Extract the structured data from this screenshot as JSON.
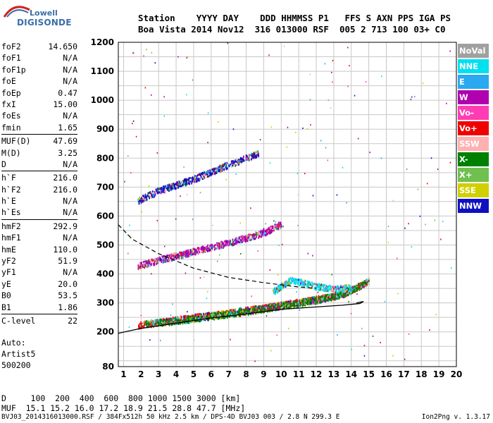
{
  "logo": {
    "line1": "Lowell",
    "line2": "DIGISONDE"
  },
  "header": {
    "line1": "Station    YYYY DAY    DDD HHMMSS P1   FFS S AXN PPS IGA PS",
    "line2": "Boa Vista 2014 Nov12  316 013000 RSF  005 2 713 100 03+ C0"
  },
  "params": [
    {
      "label": "foF2",
      "value": "14.650"
    },
    {
      "label": "foF1",
      "value": "N/A"
    },
    {
      "label": "foF1p",
      "value": "N/A"
    },
    {
      "label": "foE",
      "value": "N/A"
    },
    {
      "label": "foEp",
      "value": "0.47"
    },
    {
      "label": "fxI",
      "value": "15.00"
    },
    {
      "label": "foEs",
      "value": "N/A"
    },
    {
      "label": "fmin",
      "value": "1.65"
    },
    {
      "label": "MUF(D)",
      "value": "47.69",
      "sep": true
    },
    {
      "label": "M(D)",
      "value": "3.25"
    },
    {
      "label": "D",
      "value": "N/A"
    },
    {
      "label": "h`F",
      "value": "216.0",
      "sep": true
    },
    {
      "label": "h`F2",
      "value": "216.0"
    },
    {
      "label": "h`E",
      "value": "N/A"
    },
    {
      "label": "h`Es",
      "value": "N/A"
    },
    {
      "label": "hmF2",
      "value": "292.9",
      "sep": true
    },
    {
      "label": "hmF1",
      "value": "N/A"
    },
    {
      "label": "hmE",
      "value": "110.0"
    },
    {
      "label": "yF2",
      "value": "51.9"
    },
    {
      "label": "yF1",
      "value": "N/A"
    },
    {
      "label": "yE",
      "value": "20.0"
    },
    {
      "label": "B0",
      "value": "53.5"
    },
    {
      "label": "B1",
      "value": "1.86"
    },
    {
      "label": "C-level",
      "value": "22",
      "sep": true
    }
  ],
  "auto": {
    "line1": "Auto:",
    "line2": "Artist5",
    "line3": "500200"
  },
  "footer": {
    "d_line": "D     100  200  400  600  800 1000 1500 3000 [km]",
    "muf_line": "MUF  15.1 15.2 16.0 17.2 18.9 21.5 28.8 47.7 [MHz]",
    "file_line": "BVJ03_2014316013000.RSF / 384Fx512h 50 kHz 2.5 km / DPS-4D BVJ03 003 / 2.8 N 299.3 E",
    "version": "Ion2Png v. 1.3.17"
  },
  "legend": [
    {
      "label": "NoVal",
      "color": "#a0a0a0"
    },
    {
      "label": "NNE",
      "color": "#00e0f0"
    },
    {
      "label": "E",
      "color": "#2aa8f0"
    },
    {
      "label": "W",
      "color": "#b000b0"
    },
    {
      "label": "Vo-",
      "color": "#ff3cb4"
    },
    {
      "label": "Vo+",
      "color": "#f00000"
    },
    {
      "label": "SSW",
      "color": "#ffb0b0"
    },
    {
      "label": "X-",
      "color": "#008000"
    },
    {
      "label": "X+",
      "color": "#70c050"
    },
    {
      "label": "SSE",
      "color": "#d0d000"
    },
    {
      "label": "NNW",
      "color": "#1010c0"
    }
  ],
  "chart_data": {
    "type": "scatter",
    "xlim": [
      0.7,
      20.0
    ],
    "ylim": [
      80,
      1200
    ],
    "xticks": [
      1,
      2,
      3,
      4,
      5,
      6,
      7,
      8,
      9,
      10,
      11,
      12,
      13,
      14,
      15,
      16,
      17,
      18,
      19,
      20
    ],
    "yticks": [
      80,
      200,
      300,
      400,
      500,
      600,
      700,
      800,
      900,
      1000,
      1100,
      1200
    ],
    "grid": true,
    "traces": [
      {
        "name": "o-trace 1st hop",
        "color": "#f00000",
        "x": [
          1.8,
          3,
          5,
          7,
          9,
          10,
          11,
          12,
          13,
          14,
          14.8
        ],
        "y": [
          225,
          235,
          252,
          268,
          285,
          295,
          305,
          315,
          325,
          345,
          372
        ]
      },
      {
        "name": "x-trace 1st hop",
        "color": "#008000",
        "x": [
          2.2,
          4,
          6,
          8,
          10,
          12,
          13.5,
          15
        ],
        "y": [
          230,
          240,
          256,
          272,
          292,
          312,
          332,
          378
        ]
      },
      {
        "name": "2nd hop",
        "color": "#b000b0",
        "x": [
          1.8,
          3,
          5,
          7,
          9,
          10
        ],
        "y": [
          430,
          450,
          480,
          510,
          545,
          575
        ]
      },
      {
        "name": "3rd hop",
        "color": "#1010c0",
        "x": [
          1.8,
          3,
          5,
          7,
          8.7
        ],
        "y": [
          655,
          690,
          730,
          780,
          820
        ]
      },
      {
        "name": "upper cluster",
        "color": "#00e0f0",
        "x": [
          9.5,
          10,
          10.5,
          11,
          12,
          13,
          14
        ],
        "y": [
          340,
          360,
          380,
          375,
          360,
          350,
          355
        ]
      }
    ],
    "profile_solid": {
      "x": [
        0.7,
        2,
        4,
        6,
        8,
        10,
        12,
        13.5,
        14.5,
        14.7,
        14.3
      ],
      "y": [
        195,
        212,
        230,
        248,
        262,
        278,
        286,
        292,
        298,
        305,
        300
      ]
    },
    "profile_dashed": {
      "x": [
        0.7,
        1.5,
        3,
        5,
        7,
        9,
        11,
        12
      ],
      "y": [
        570,
        520,
        470,
        420,
        388,
        370,
        355,
        350
      ]
    }
  }
}
